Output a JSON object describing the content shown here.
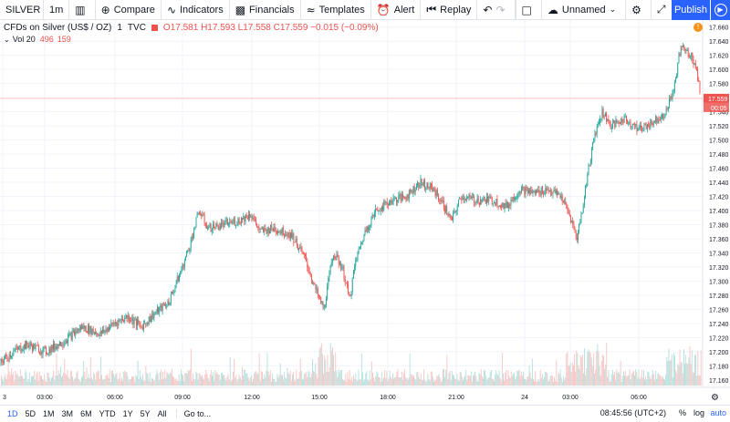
{
  "toolbar": {
    "symbol": "SILVER",
    "interval": "1m",
    "candles_icon": "candles-icon",
    "compare": "Compare",
    "indicators": "Indicators",
    "financials": "Financials",
    "templates": "Templates",
    "alert": "Alert",
    "replay": "Replay",
    "layout_name": "Unnamed",
    "publish": "Publish"
  },
  "legend": {
    "title": "CFDs on Silver (US$ / OZ)",
    "interval": "1",
    "source": "TVC",
    "open": "O17.581",
    "high": "H17.593",
    "low": "L17.558",
    "close": "C17.559",
    "change": "−0.015 (−0.09%)"
  },
  "volume": {
    "label": "Vol 20",
    "value1": "496",
    "value2": "159"
  },
  "chart_data": {
    "type": "candlestick",
    "y_ticks": [
      "17.660",
      "17.640",
      "17.620",
      "17.600",
      "17.580",
      "17.540",
      "17.520",
      "17.500",
      "17.480",
      "17.460",
      "17.440",
      "17.420",
      "17.400",
      "17.380",
      "17.360",
      "17.340",
      "17.320",
      "17.300",
      "17.280",
      "17.260",
      "17.240",
      "17.220",
      "17.200",
      "17.180",
      "17.160",
      "17.140"
    ],
    "x_ticks": [
      "3",
      "03:00",
      "06:00",
      "09:00",
      "12:00",
      "15:00",
      "18:00",
      "21:00",
      "24",
      "03:00",
      "06:00"
    ],
    "last_price": "17.559",
    "countdown": "00:05",
    "ylim": [
      17.13,
      17.67
    ],
    "path": [
      [
        0,
        17.185
      ],
      [
        15,
        17.2
      ],
      [
        30,
        17.21
      ],
      [
        50,
        17.2
      ],
      [
        70,
        17.215
      ],
      [
        90,
        17.235
      ],
      [
        110,
        17.225
      ],
      [
        125,
        17.24
      ],
      [
        140,
        17.25
      ],
      [
        155,
        17.235
      ],
      [
        170,
        17.255
      ],
      [
        185,
        17.27
      ],
      [
        200,
        17.32
      ],
      [
        210,
        17.36
      ],
      [
        218,
        17.4
      ],
      [
        228,
        17.375
      ],
      [
        245,
        17.38
      ],
      [
        260,
        17.385
      ],
      [
        275,
        17.395
      ],
      [
        285,
        17.37
      ],
      [
        300,
        17.375
      ],
      [
        320,
        17.365
      ],
      [
        335,
        17.33
      ],
      [
        345,
        17.29
      ],
      [
        355,
        17.26
      ],
      [
        365,
        17.34
      ],
      [
        375,
        17.32
      ],
      [
        383,
        17.275
      ],
      [
        390,
        17.33
      ],
      [
        400,
        17.37
      ],
      [
        412,
        17.4
      ],
      [
        430,
        17.415
      ],
      [
        445,
        17.42
      ],
      [
        460,
        17.44
      ],
      [
        475,
        17.43
      ],
      [
        485,
        17.41
      ],
      [
        495,
        17.385
      ],
      [
        505,
        17.42
      ],
      [
        520,
        17.415
      ],
      [
        540,
        17.415
      ],
      [
        555,
        17.405
      ],
      [
        570,
        17.43
      ],
      [
        585,
        17.425
      ],
      [
        600,
        17.43
      ],
      [
        615,
        17.42
      ],
      [
        625,
        17.39
      ],
      [
        632,
        17.36
      ],
      [
        638,
        17.4
      ],
      [
        645,
        17.46
      ],
      [
        652,
        17.51
      ],
      [
        660,
        17.54
      ],
      [
        670,
        17.52
      ],
      [
        685,
        17.53
      ],
      [
        700,
        17.515
      ],
      [
        715,
        17.525
      ],
      [
        730,
        17.54
      ],
      [
        740,
        17.58
      ],
      [
        746,
        17.635
      ],
      [
        752,
        17.625
      ],
      [
        758,
        17.62
      ],
      [
        764,
        17.595
      ],
      [
        768,
        17.559
      ]
    ]
  },
  "bottombar": {
    "ranges": [
      "1D",
      "5D",
      "1M",
      "3M",
      "6M",
      "YTD",
      "1Y",
      "5Y",
      "All"
    ],
    "goto": "Go to...",
    "clock": "08:45:56 (UTC+2)",
    "pct": "%",
    "log": "log",
    "auto": "auto"
  },
  "colors": {
    "up": "#26a69a",
    "down": "#ef5350",
    "accent": "#2962ff"
  }
}
